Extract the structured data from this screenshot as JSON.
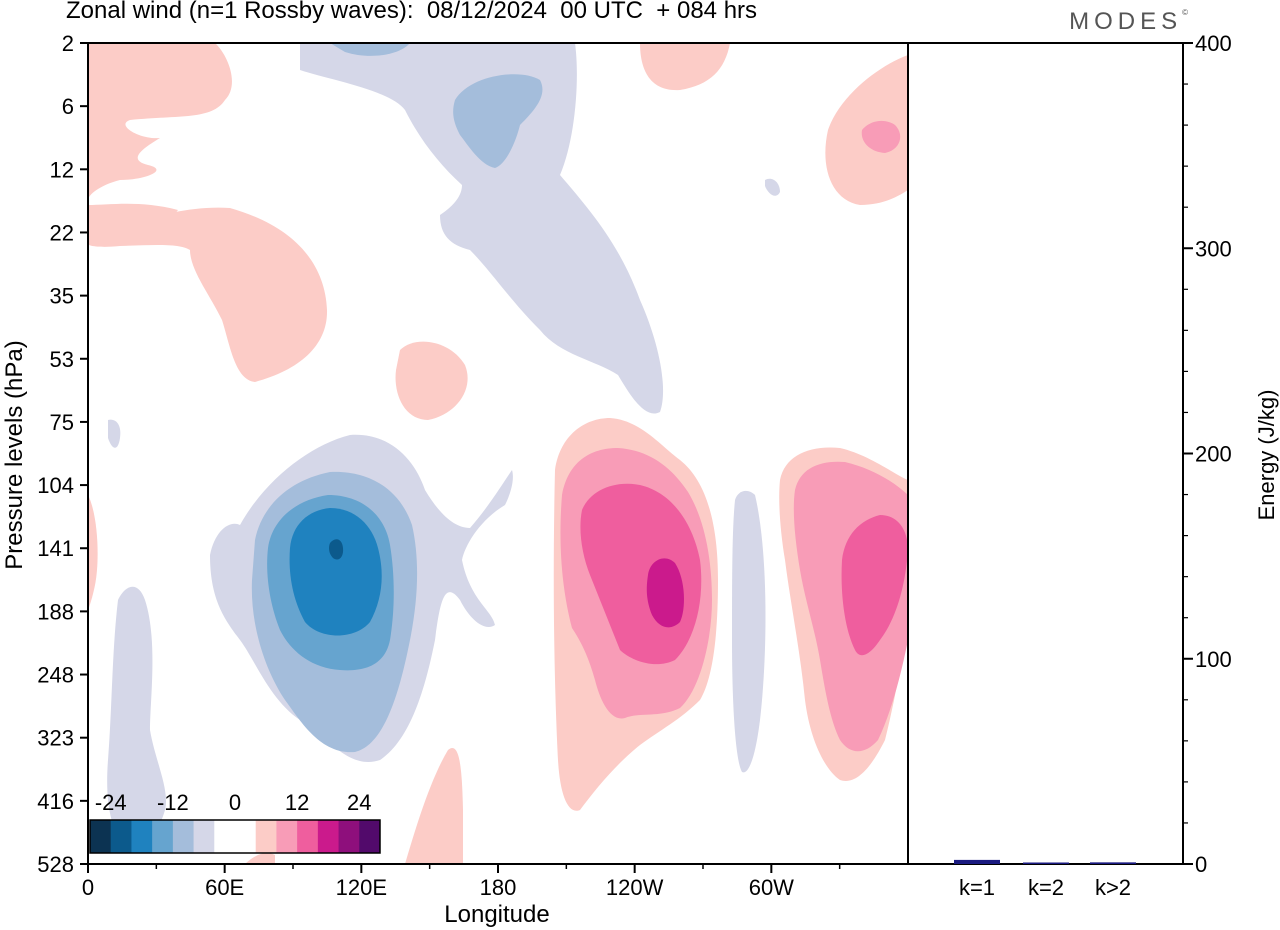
{
  "chart_data": {
    "type": "contour",
    "title": "Zonal wind (n=1 Rossby waves):  08/12/2024  00 UTC  + 084 hrs",
    "brand": "MODES",
    "brand_mark": "©",
    "contour_panel": {
      "xlabel": "Longitude",
      "ylabel": "Pressure levels (hPa)",
      "x_ticks": [
        "0",
        "60E",
        "120E",
        "180",
        "120W",
        "60W"
      ],
      "x_tick_values": [
        0,
        60,
        120,
        180,
        240,
        300
      ],
      "xlim": [
        0,
        360
      ],
      "y_ticks": [
        "2",
        "6",
        "12",
        "22",
        "35",
        "53",
        "75",
        "104",
        "141",
        "188",
        "248",
        "323",
        "416",
        "528"
      ],
      "colorbar": {
        "labels": [
          "-24",
          "-12",
          "0",
          "12",
          "24"
        ],
        "colors": [
          "#0c3352",
          "#0c5a8c",
          "#1f82bf",
          "#66a4cf",
          "#a4bddb",
          "#d5d7e8",
          "#ffffff",
          "#ffffff",
          "#fcccc7",
          "#f89cb7",
          "#ef5e9e",
          "#cb1a8c",
          "#8e0f7c",
          "#520a6b"
        ]
      },
      "features": [
        {
          "name": "negative-anomaly-100E",
          "center_lon": 108,
          "center_level": "141",
          "peak": -24
        },
        {
          "name": "positive-anomaly-130W",
          "center_lon": 232,
          "center_level": "188",
          "peak": 18
        },
        {
          "name": "positive-anomaly-20W",
          "center_lon": 342,
          "center_level": "141",
          "peak": 12
        }
      ]
    },
    "energy_panel": {
      "type": "bar",
      "ylabel": "Energy (J/kg)",
      "categories": [
        "k=1",
        "k=2",
        "k>2"
      ],
      "values": [
        2,
        0.5,
        0.8
      ],
      "ylim": [
        0,
        400
      ],
      "y_ticks": [
        "0",
        "100",
        "200",
        "300",
        "400"
      ],
      "y_tick_values": [
        0,
        100,
        200,
        300,
        400
      ],
      "bar_color": "#1a1a80"
    }
  }
}
